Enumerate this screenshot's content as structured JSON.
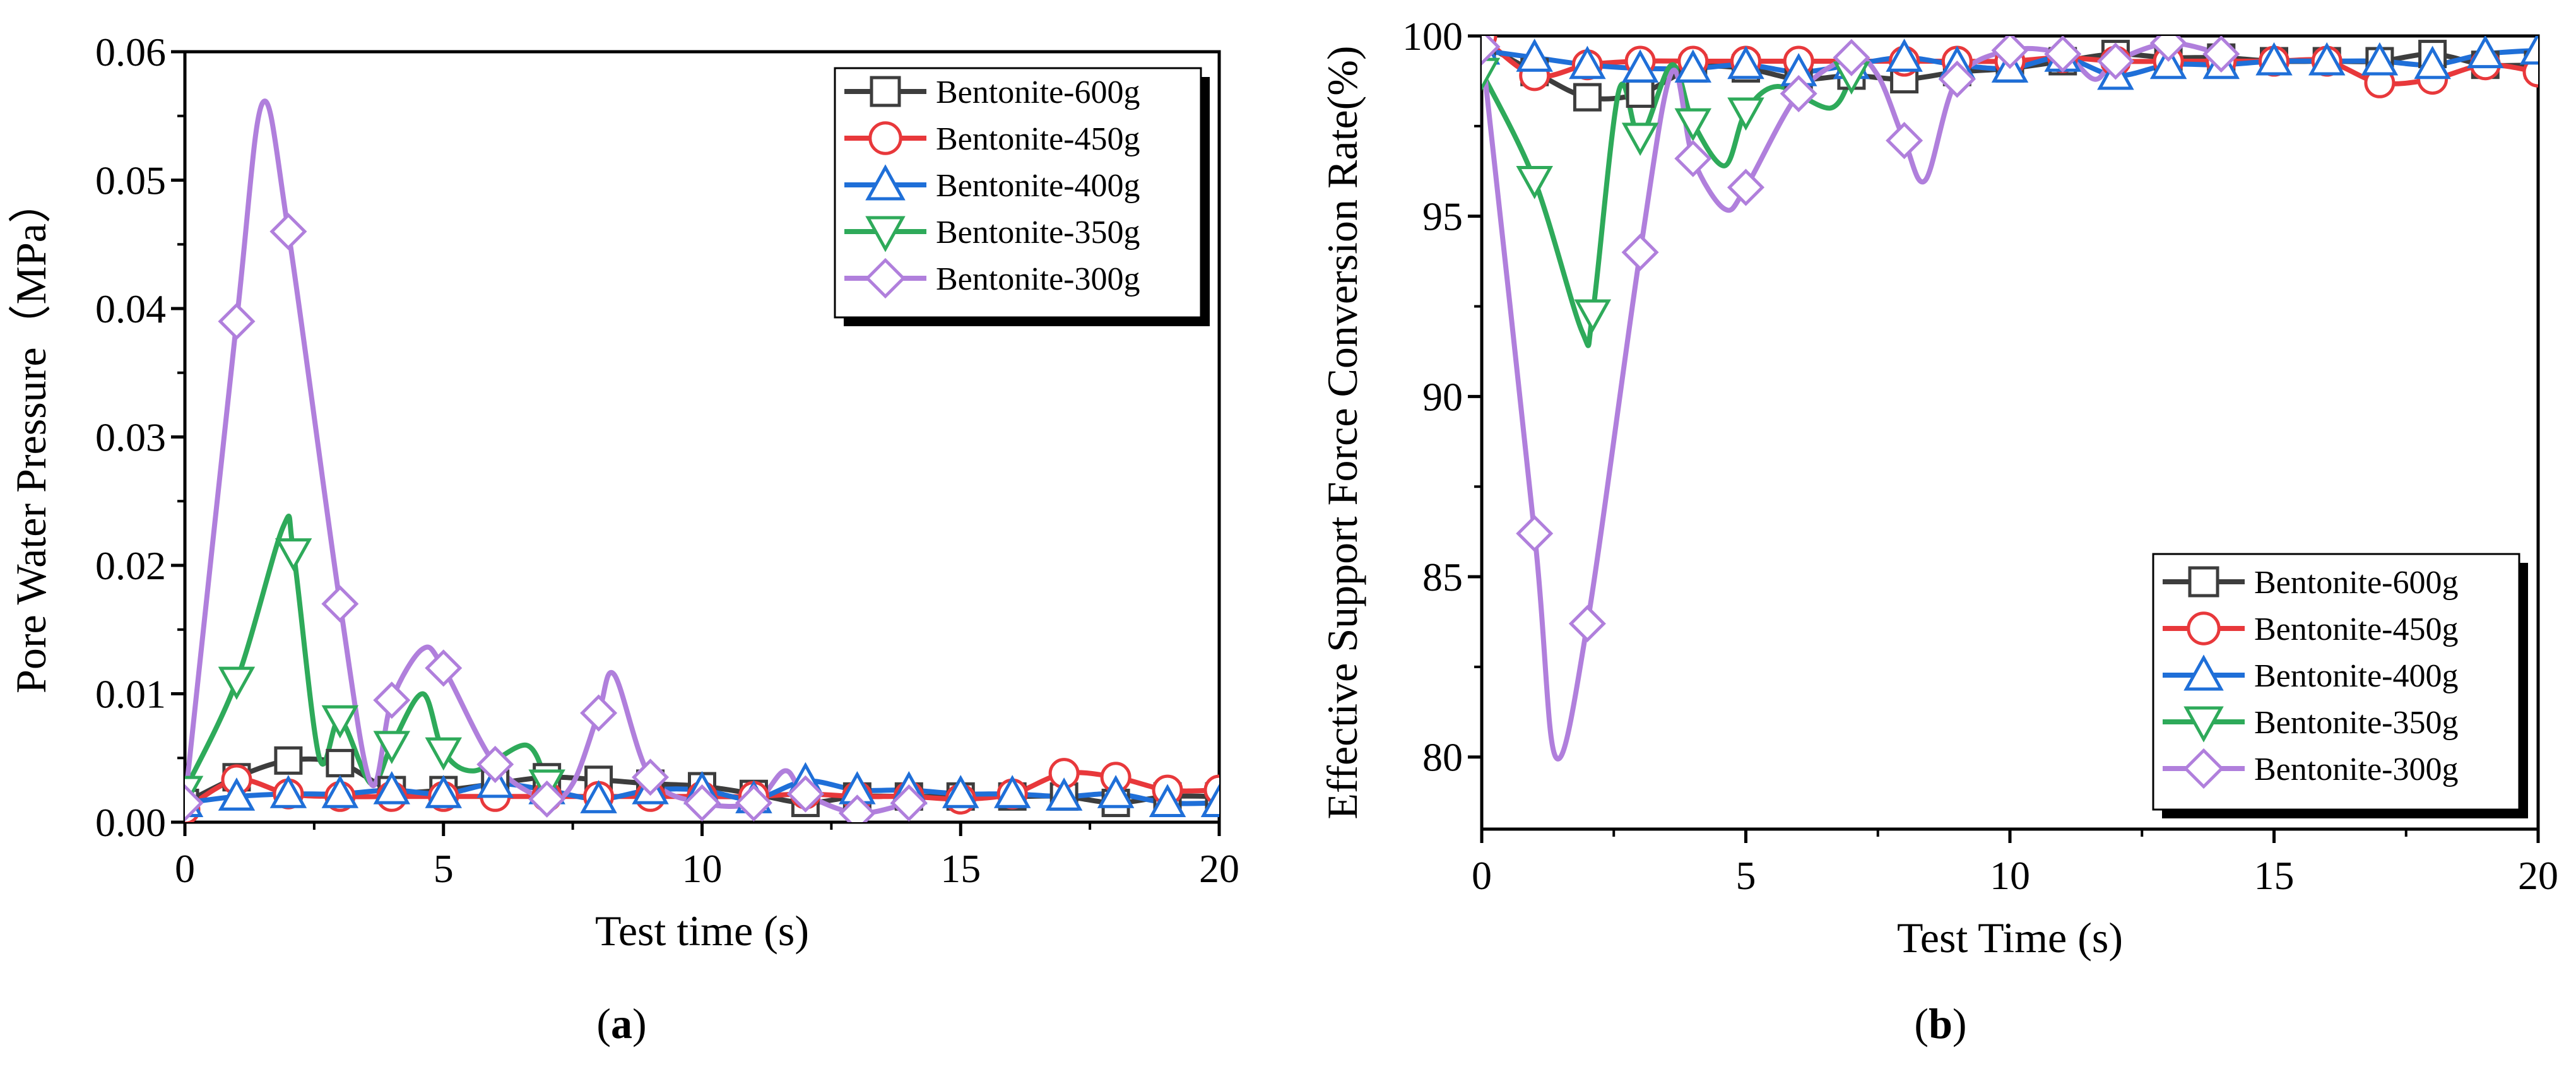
{
  "chart_data": [
    {
      "type": "line",
      "panel_label": "a",
      "xlabel": "Test time (s)",
      "ylabel": "Pore Water Pressure（MPa）",
      "xlim": [
        0,
        20
      ],
      "ylim": [
        0,
        0.06
      ],
      "xticks": [
        0,
        5,
        10,
        15,
        20
      ],
      "yticks": [
        0.0,
        0.01,
        0.02,
        0.03,
        0.04,
        0.05,
        0.06
      ],
      "ytick_labels": [
        "0.00",
        "0.01",
        "0.02",
        "0.03",
        "0.04",
        "0.05",
        "0.06"
      ],
      "xtick_labels": [
        "0",
        "5",
        "10",
        "15",
        "20"
      ],
      "legend_position": "top-right",
      "grid": false,
      "series": [
        {
          "name": "Bentonite-600g",
          "color": "#3d3d3d",
          "marker": "square",
          "x": [
            0,
            1,
            2,
            3,
            4,
            5,
            6,
            7,
            8,
            9,
            10,
            11,
            12,
            13,
            14,
            15,
            16,
            17,
            18,
            19,
            20
          ],
          "y": [
            0.0015,
            0.0035,
            0.0048,
            0.0046,
            0.0025,
            0.0025,
            0.003,
            0.0035,
            0.0033,
            0.003,
            0.0028,
            0.0022,
            0.0015,
            0.002,
            0.002,
            0.002,
            0.002,
            0.002,
            0.0015,
            0.002,
            0.002
          ]
        },
        {
          "name": "Bentonite-450g",
          "color": "#e8383b",
          "marker": "circle",
          "x": [
            0,
            1,
            2,
            3,
            4,
            5,
            6,
            7,
            8,
            9,
            10,
            11,
            12,
            13,
            14,
            15,
            16,
            17,
            18,
            19,
            20
          ],
          "y": [
            0.001,
            0.0033,
            0.0022,
            0.002,
            0.002,
            0.002,
            0.002,
            0.002,
            0.002,
            0.002,
            0.002,
            0.002,
            0.0022,
            0.002,
            0.002,
            0.0018,
            0.0022,
            0.0038,
            0.0035,
            0.0025,
            0.0025
          ]
        },
        {
          "name": "Bentonite-400g",
          "color": "#1f6fd8",
          "marker": "triangle-up",
          "x": [
            0,
            1,
            2,
            3,
            4,
            5,
            6,
            7,
            8,
            9,
            10,
            11,
            12,
            13,
            14,
            15,
            16,
            17,
            18,
            19,
            20
          ],
          "y": [
            0.0015,
            0.002,
            0.0022,
            0.0022,
            0.0025,
            0.0022,
            0.003,
            0.0025,
            0.0018,
            0.0025,
            0.0025,
            0.0018,
            0.0032,
            0.0025,
            0.0025,
            0.0022,
            0.0022,
            0.002,
            0.0022,
            0.0015,
            0.0015
          ]
        },
        {
          "name": "Bentonite-350g",
          "color": "#2eaa5a",
          "marker": "triangle-down",
          "x": [
            0,
            1,
            1.9,
            2.1,
            2.6,
            3,
            3.6,
            4,
            4.6,
            5,
            5.6,
            6.6,
            7
          ],
          "y": [
            0.0025,
            0.011,
            0.023,
            0.021,
            0.005,
            0.008,
            0.003,
            0.006,
            0.01,
            0.0055,
            0.004,
            0.006,
            0.003
          ]
        },
        {
          "name": "Bentonite-300g",
          "color": "#b07fdc",
          "marker": "diamond",
          "x": [
            0,
            1,
            1.5,
            2,
            3,
            3.6,
            4,
            4.6,
            5,
            6,
            7,
            7.5,
            8,
            8.3,
            9,
            10,
            11,
            11.6,
            12,
            13,
            14
          ],
          "y": [
            0.0015,
            0.039,
            0.056,
            0.046,
            0.017,
            0.003,
            0.0095,
            0.0135,
            0.012,
            0.0045,
            0.0018,
            0.003,
            0.0085,
            0.0115,
            0.0035,
            0.0015,
            0.0015,
            0.004,
            0.0022,
            0.0007,
            0.0015
          ]
        }
      ]
    },
    {
      "type": "line",
      "panel_label": "b",
      "xlabel": "Test Time (s)",
      "ylabel": "Effective Support Force Conversion Rate(%)",
      "xlim": [
        0,
        20
      ],
      "ylim": [
        78,
        100
      ],
      "xticks": [
        0,
        5,
        10,
        15,
        20
      ],
      "yticks": [
        80,
        85,
        90,
        95,
        100
      ],
      "ytick_labels": [
        "80",
        "85",
        "90",
        "95",
        "100"
      ],
      "xtick_labels": [
        "0",
        "5",
        "10",
        "15",
        "20"
      ],
      "legend_position": "bottom-right",
      "grid": false,
      "series": [
        {
          "name": "Bentonite-600g",
          "color": "#3d3d3d",
          "marker": "square",
          "x": [
            0,
            1,
            2,
            3,
            4,
            5,
            6,
            7,
            8,
            9,
            10,
            11,
            12,
            13,
            14,
            15,
            16,
            17,
            18,
            19,
            20
          ],
          "y": [
            99.8,
            99.0,
            98.3,
            98.4,
            99.1,
            99.1,
            98.8,
            98.9,
            98.8,
            99.0,
            99.1,
            99.3,
            99.5,
            99.4,
            99.4,
            99.3,
            99.3,
            99.3,
            99.5,
            99.2,
            99.2
          ]
        },
        {
          "name": "Bentonite-450g",
          "color": "#e8383b",
          "marker": "circle",
          "x": [
            0,
            1,
            2,
            3,
            4,
            5,
            6,
            7,
            8,
            9,
            10,
            11,
            12,
            13,
            14,
            15,
            16,
            17,
            18,
            19,
            20
          ],
          "y": [
            100.0,
            98.9,
            99.2,
            99.3,
            99.3,
            99.3,
            99.3,
            99.3,
            99.3,
            99.3,
            99.3,
            99.4,
            99.3,
            99.3,
            99.3,
            99.3,
            99.3,
            98.7,
            98.8,
            99.2,
            99.0
          ]
        },
        {
          "name": "Bentonite-400g",
          "color": "#1f6fd8",
          "marker": "triangle-up",
          "x": [
            0,
            1,
            2,
            3,
            4,
            5,
            6,
            7,
            8,
            9,
            10,
            11,
            12,
            13,
            14,
            15,
            16,
            17,
            18,
            19,
            20
          ],
          "y": [
            99.6,
            99.4,
            99.2,
            99.1,
            99.1,
            99.2,
            99.0,
            99.2,
            99.4,
            99.2,
            99.1,
            99.4,
            98.9,
            99.2,
            99.2,
            99.3,
            99.3,
            99.3,
            99.2,
            99.5,
            99.6
          ]
        },
        {
          "name": "Bentonite-350g",
          "color": "#2eaa5a",
          "marker": "triangle-down",
          "x": [
            0,
            1,
            1.9,
            2.1,
            2.6,
            3,
            3.6,
            4,
            4.6,
            5,
            5.6,
            6.6,
            7
          ],
          "y": [
            99.0,
            96.0,
            91.8,
            92.3,
            98.5,
            97.2,
            99.2,
            97.6,
            96.4,
            97.9,
            98.6,
            98.0,
            98.9
          ]
        },
        {
          "name": "Bentonite-300g",
          "color": "#b07fdc",
          "marker": "diamond",
          "x": [
            0,
            1,
            1.4,
            2,
            3,
            3.6,
            4,
            4.6,
            5,
            6,
            7,
            7.5,
            8,
            8.4,
            9,
            10,
            11,
            11.6,
            12,
            13,
            14
          ],
          "y": [
            99.7,
            86.2,
            80.0,
            83.7,
            94.0,
            99.0,
            96.6,
            95.2,
            95.8,
            98.4,
            99.4,
            98.9,
            97.1,
            96.0,
            98.8,
            99.6,
            99.5,
            98.8,
            99.3,
            99.8,
            99.5
          ]
        }
      ]
    }
  ]
}
